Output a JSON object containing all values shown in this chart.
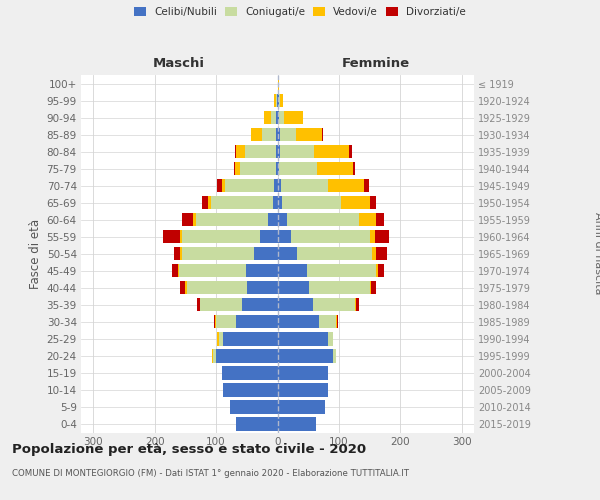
{
  "age_groups": [
    "100+",
    "95-99",
    "90-94",
    "85-89",
    "80-84",
    "75-79",
    "70-74",
    "65-69",
    "60-64",
    "55-59",
    "50-54",
    "45-49",
    "40-44",
    "35-39",
    "30-34",
    "25-29",
    "20-24",
    "15-19",
    "10-14",
    "5-9",
    "0-4"
  ],
  "birth_years": [
    "≤ 1919",
    "1920-1924",
    "1925-1929",
    "1930-1934",
    "1935-1939",
    "1940-1944",
    "1945-1949",
    "1950-1954",
    "1955-1959",
    "1960-1964",
    "1965-1969",
    "1970-1974",
    "1975-1979",
    "1980-1984",
    "1985-1989",
    "1990-1994",
    "1995-1999",
    "2000-2004",
    "2005-2009",
    "2010-2014",
    "2015-2019"
  ],
  "color_celibi": "#4472c4",
  "color_coniugati": "#c8dca0",
  "color_vedovi": "#ffc000",
  "color_divorziati": "#c00000",
  "males_celibi": [
    0,
    1,
    2,
    3,
    3,
    3,
    5,
    8,
    15,
    28,
    38,
    52,
    50,
    58,
    68,
    88,
    100,
    90,
    88,
    78,
    68
  ],
  "males_coniugati": [
    0,
    2,
    8,
    22,
    50,
    58,
    80,
    100,
    118,
    128,
    118,
    108,
    98,
    68,
    32,
    8,
    5,
    0,
    0,
    0,
    0
  ],
  "males_vedovi": [
    0,
    2,
    12,
    18,
    15,
    8,
    5,
    5,
    4,
    3,
    2,
    2,
    2,
    1,
    1,
    2,
    2,
    0,
    0,
    0,
    0
  ],
  "males_divorziati": [
    0,
    0,
    0,
    0,
    2,
    2,
    8,
    10,
    18,
    28,
    10,
    10,
    8,
    4,
    2,
    0,
    0,
    0,
    0,
    0,
    0
  ],
  "females_celibi": [
    1,
    2,
    3,
    4,
    4,
    3,
    5,
    8,
    15,
    22,
    32,
    48,
    52,
    58,
    68,
    83,
    90,
    83,
    83,
    78,
    62
  ],
  "females_coniugati": [
    0,
    2,
    8,
    26,
    55,
    62,
    78,
    95,
    118,
    128,
    122,
    112,
    98,
    68,
    28,
    8,
    5,
    0,
    0,
    0,
    0
  ],
  "females_vedovi": [
    1,
    5,
    30,
    42,
    58,
    58,
    58,
    48,
    28,
    8,
    6,
    4,
    2,
    2,
    1,
    0,
    0,
    0,
    0,
    0,
    0
  ],
  "females_divorziati": [
    0,
    0,
    0,
    2,
    4,
    4,
    8,
    10,
    12,
    24,
    18,
    10,
    8,
    4,
    2,
    0,
    0,
    0,
    0,
    0,
    0
  ],
  "title": "Popolazione per età, sesso e stato civile - 2020",
  "subtitle": "COMUNE DI MONTEGIORGIO (FM) - Dati ISTAT 1° gennaio 2020 - Elaborazione TUTTITALIA.IT",
  "label_maschi": "Maschi",
  "label_femmine": "Femmine",
  "ylabel_left": "Fasce di età",
  "ylabel_right": "Anni di nascita",
  "legend_labels": [
    "Celibi/Nubili",
    "Coniugati/e",
    "Vedovi/e",
    "Divorziati/e"
  ],
  "xlim": 320,
  "bg_color": "#efefef",
  "plot_bg": "#ffffff"
}
